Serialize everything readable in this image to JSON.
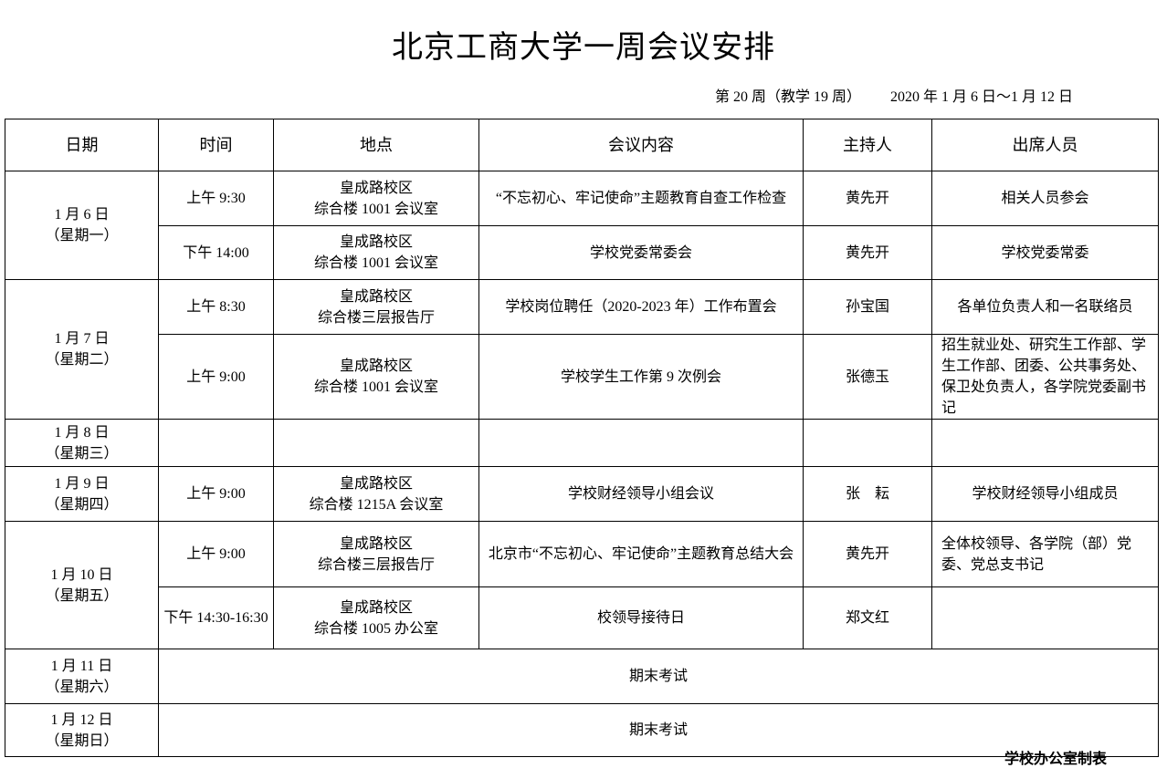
{
  "title": "北京工商大学一周会议安排",
  "week_info": "第 20 周（教学 19 周）        2020 年 1 月 6 日～1 月 12 日",
  "headers": [
    "日期",
    "时间",
    "地点",
    "会议内容",
    "主持人",
    "出席人员"
  ],
  "days": [
    {
      "date": "1 月 6 日",
      "weekday": "（星期一）",
      "meetings": [
        {
          "time": "上午 9:30",
          "location": [
            "皇成路校区",
            "综合楼 1001 会议室"
          ],
          "content": "“不忘初心、牢记使命”主题教育自查工作检查",
          "host": "黄先开",
          "attendees": "相关人员参会"
        },
        {
          "time": "下午 14:00",
          "location": [
            "皇成路校区",
            "综合楼 1001 会议室"
          ],
          "content": "学校党委常委会",
          "host": "黄先开",
          "attendees": "学校党委常委"
        }
      ]
    },
    {
      "date": "1 月 7 日",
      "weekday": "（星期二）",
      "meetings": [
        {
          "time": "上午 8:30",
          "location": [
            "皇成路校区",
            "综合楼三层报告厅"
          ],
          "content": "学校岗位聘任（2020-2023 年）工作布置会",
          "host": "孙宝国",
          "attendees": "各单位负责人和一名联络员"
        },
        {
          "time": "上午 9:00",
          "location": [
            "皇成路校区",
            "综合楼 1001 会议室"
          ],
          "content": "学校学生工作第 9 次例会",
          "host": "张德玉",
          "attendees": "招生就业处、研究生工作部、学生工作部、团委、公共事务处、保卫处负责人，各学院党委副书记"
        }
      ]
    },
    {
      "date": "1 月 8 日",
      "weekday": "（星期三）",
      "meetings": [
        {
          "time": "",
          "location": [
            "",
            ""
          ],
          "content": "",
          "host": "",
          "attendees": ""
        }
      ]
    },
    {
      "date": "1 月 9 日",
      "weekday": "（星期四）",
      "meetings": [
        {
          "time": "上午 9:00",
          "location": [
            "皇成路校区",
            "综合楼 1215A 会议室"
          ],
          "content": "学校财经领导小组会议",
          "host": "张　耘",
          "attendees": "学校财经领导小组成员"
        }
      ]
    },
    {
      "date": "1 月 10 日",
      "weekday": "（星期五）",
      "meetings": [
        {
          "time": "上午 9:00",
          "location": [
            "皇成路校区",
            "综合楼三层报告厅"
          ],
          "content": "北京市“不忘初心、牢记使命”主题教育总结大会",
          "host": "黄先开",
          "attendees": "全体校领导、各学院（部）党委、党总支书记"
        },
        {
          "time": "下午 14:30-16:30",
          "location": [
            "皇成路校区",
            "综合楼 1005 办公室"
          ],
          "content": "校领导接待日",
          "host": "郑文红",
          "attendees": ""
        }
      ]
    },
    {
      "date": "1 月 11 日",
      "weekday": "（星期六）",
      "span": "期末考试"
    },
    {
      "date": "1 月 12 日",
      "weekday": "（星期日）",
      "span": "期末考试"
    }
  ],
  "footer": "学校办公室制表"
}
